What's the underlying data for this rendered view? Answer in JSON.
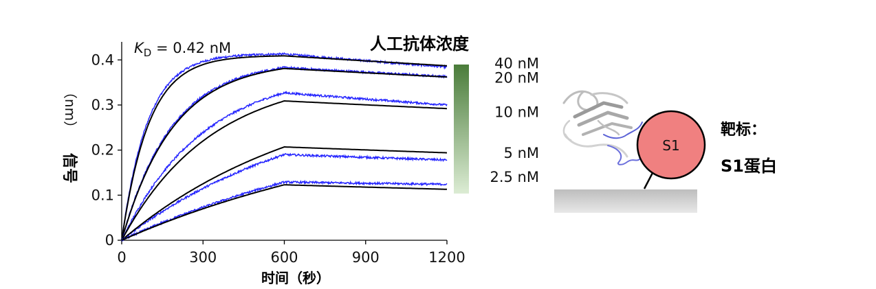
{
  "chart_data": {
    "type": "line",
    "title": "",
    "xlabel": "时间（秒）",
    "ylabel_main": "信号",
    "ylabel_unit": "（nm）",
    "x_ticks": [
      0,
      300,
      600,
      900,
      1200
    ],
    "y_ticks": [
      0,
      0.1,
      0.2,
      0.3,
      0.4
    ],
    "y_tick_labels": [
      "0",
      "0.1",
      "0.2",
      "0.3",
      "0.4"
    ],
    "xlim": [
      0,
      1200
    ],
    "ylim": [
      0,
      0.44
    ],
    "grid": false,
    "association_end": 600,
    "annotation": {
      "prefix": "K",
      "subscript": "D",
      "value": " = 0.42 nM"
    },
    "legend_title": "人工抗体浓度",
    "legend_gradient": {
      "top": "#4a7c3a",
      "bottom": "#dcecd4"
    },
    "series": [
      {
        "name": "40 nM",
        "label_pos": 0.392,
        "measured": {
          "peak": 0.413,
          "end": 0.384,
          "tau": 95
        },
        "fit": {
          "peak": 0.409,
          "end": 0.387,
          "tau": 100
        }
      },
      {
        "name": "20 nM",
        "label_pos": 0.36,
        "measured": {
          "peak": 0.383,
          "end": 0.363,
          "tau": 185
        },
        "fit": {
          "peak": 0.381,
          "end": 0.362,
          "tau": 190
        }
      },
      {
        "name": "10 nM",
        "label_pos": 0.284,
        "measured": {
          "peak": 0.327,
          "end": 0.3,
          "tau": 300
        },
        "fit": {
          "peak": 0.309,
          "end": 0.292,
          "tau": 330
        }
      },
      {
        "name": "5 nM",
        "label_pos": 0.193,
        "measured": {
          "peak": 0.19,
          "end": 0.178,
          "tau": 700
        },
        "fit": {
          "peak": 0.207,
          "end": 0.194,
          "tau": 700
        }
      },
      {
        "name": "2.5 nM",
        "label_pos": 0.14,
        "measured": {
          "peak": 0.129,
          "end": 0.124,
          "tau": 1100
        },
        "fit": {
          "peak": 0.123,
          "end": 0.113,
          "tau": 1100
        }
      }
    ],
    "colors": {
      "measured": "#2626ff",
      "fit": "#000000"
    }
  },
  "schematic": {
    "target_label": "靶标：",
    "target_name": "S1蛋白",
    "sphere_label": "S1",
    "sphere_color": "#f08080",
    "surface_color": "#c8c8c8"
  }
}
